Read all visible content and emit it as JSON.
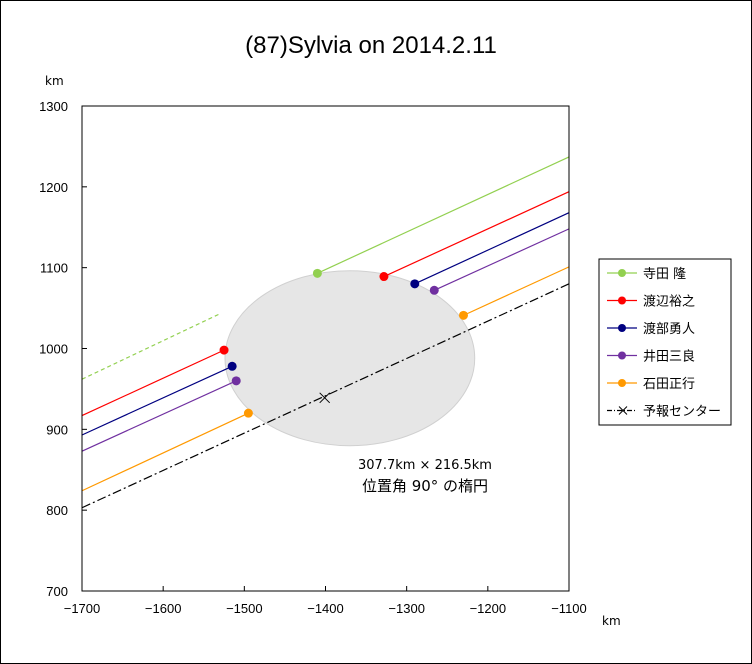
{
  "chart_data": {
    "type": "line",
    "title": "(87)Sylvia on 2014.2.11",
    "xlabel": "km",
    "ylabel": "km",
    "xlim": [
      -1700,
      -1100
    ],
    "ylim": [
      700,
      1300
    ],
    "x_ticks": [
      "−1700",
      "−1600",
      "−1500",
      "−1400",
      "−1300",
      "−1200",
      "−1100"
    ],
    "y_ticks": [
      "700",
      "800",
      "900",
      "1000",
      "1100",
      "1200",
      "1300"
    ],
    "ellipse": {
      "center": [
        -1370,
        988
      ],
      "semi_major_km": 153.85,
      "semi_minor_km": 108.25,
      "fill": "#e6e6e6",
      "annotation_line1": "307.7km × 216.5km",
      "annotation_line2": "位置角 90° の楕円"
    },
    "prediction_center": {
      "x": -1401,
      "y": 939
    },
    "series": [
      {
        "name": "寺田 隆",
        "color": "#92d050",
        "dashed_segment": {
          "x": [
            -1700,
            -1530
          ],
          "y": [
            962,
            1043
          ]
        },
        "solid_segment": {
          "x": [
            -1410,
            -1100
          ],
          "y": [
            1093,
            1237
          ]
        },
        "points": [
          {
            "x": -1410,
            "y": 1093
          }
        ]
      },
      {
        "name": "渡辺裕之",
        "color": "#ff0000",
        "solid_segments": [
          {
            "x": [
              -1700,
              -1525
            ],
            "y": [
              917,
              998
            ]
          },
          {
            "x": [
              -1328,
              -1100
            ],
            "y": [
              1089,
              1194
            ]
          }
        ],
        "points": [
          {
            "x": -1525,
            "y": 998
          },
          {
            "x": -1328,
            "y": 1089
          }
        ]
      },
      {
        "name": "渡部勇人",
        "color": "#000080",
        "solid_segments": [
          {
            "x": [
              -1700,
              -1515
            ],
            "y": [
              893,
              978
            ]
          },
          {
            "x": [
              -1290,
              -1100
            ],
            "y": [
              1080,
              1168
            ]
          }
        ],
        "points": [
          {
            "x": -1515,
            "y": 978
          },
          {
            "x": -1290,
            "y": 1080
          }
        ]
      },
      {
        "name": "井田三良",
        "color": "#7030a0",
        "solid_segments": [
          {
            "x": [
              -1700,
              -1510
            ],
            "y": [
              873,
              960
            ]
          },
          {
            "x": [
              -1266,
              -1100
            ],
            "y": [
              1072,
              1148
            ]
          }
        ],
        "points": [
          {
            "x": -1510,
            "y": 960
          },
          {
            "x": -1266,
            "y": 1072
          }
        ]
      },
      {
        "name": "石田正行",
        "color": "#ff9900",
        "solid_segments": [
          {
            "x": [
              -1700,
              -1495
            ],
            "y": [
              824,
              920
            ]
          },
          {
            "x": [
              -1230,
              -1100
            ],
            "y": [
              1041,
              1101
            ]
          }
        ],
        "points": [
          {
            "x": -1495,
            "y": 920
          },
          {
            "x": -1230,
            "y": 1041
          }
        ]
      },
      {
        "name": "予報センター",
        "color": "#000000",
        "dashdot_segment": {
          "x": [
            -1700,
            -1100
          ],
          "y": [
            803,
            1080
          ]
        },
        "marker": "x"
      }
    ],
    "legend_position": "right",
    "grid": false
  }
}
